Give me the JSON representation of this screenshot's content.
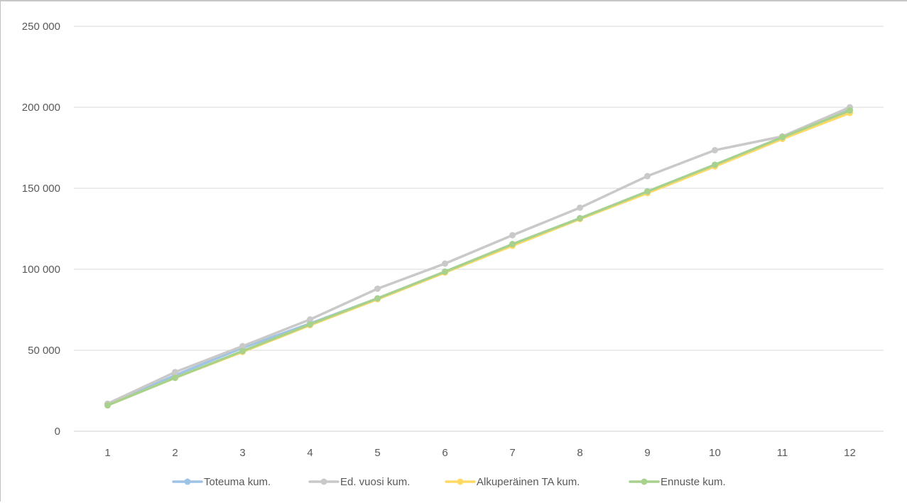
{
  "chart_data": {
    "type": "line",
    "x": [
      1,
      2,
      3,
      4,
      5,
      6,
      7,
      8,
      9,
      10,
      11,
      12
    ],
    "ylim": [
      0,
      250000
    ],
    "yticks": [
      0,
      50000,
      100000,
      150000,
      200000,
      250000
    ],
    "ytick_labels": [
      "0",
      "50 000",
      "100 000",
      "150 000",
      "200 000",
      "250 000"
    ],
    "xtick_labels": [
      "1",
      "2",
      "3",
      "4",
      "5",
      "6",
      "7",
      "8",
      "9",
      "10",
      "11",
      "12"
    ],
    "grid": true,
    "legend_position": "bottom",
    "series": [
      {
        "name": "Toteuma kum.",
        "color": "#9dc3e6",
        "values": [
          16500,
          34500,
          51500,
          66500,
          82000,
          98500,
          115500,
          131500,
          148000,
          164500,
          181500,
          198500
        ]
      },
      {
        "name": "Ed. vuosi kum.",
        "color": "#c9c9c9",
        "values": [
          17000,
          36500,
          52500,
          69000,
          88000,
          103500,
          121000,
          138000,
          157500,
          173500,
          182000,
          200000
        ]
      },
      {
        "name": "Alkuperäinen TA kum.",
        "color": "#ffd966",
        "values": [
          16000,
          33000,
          49000,
          65500,
          81500,
          98000,
          114500,
          131000,
          147000,
          163500,
          180500,
          196500
        ]
      },
      {
        "name": "Ennuste kum.",
        "color": "#a9d18e",
        "values": [
          16000,
          33000,
          49500,
          66000,
          82000,
          98500,
          115500,
          131500,
          148000,
          164500,
          181500,
          198000
        ]
      }
    ]
  }
}
